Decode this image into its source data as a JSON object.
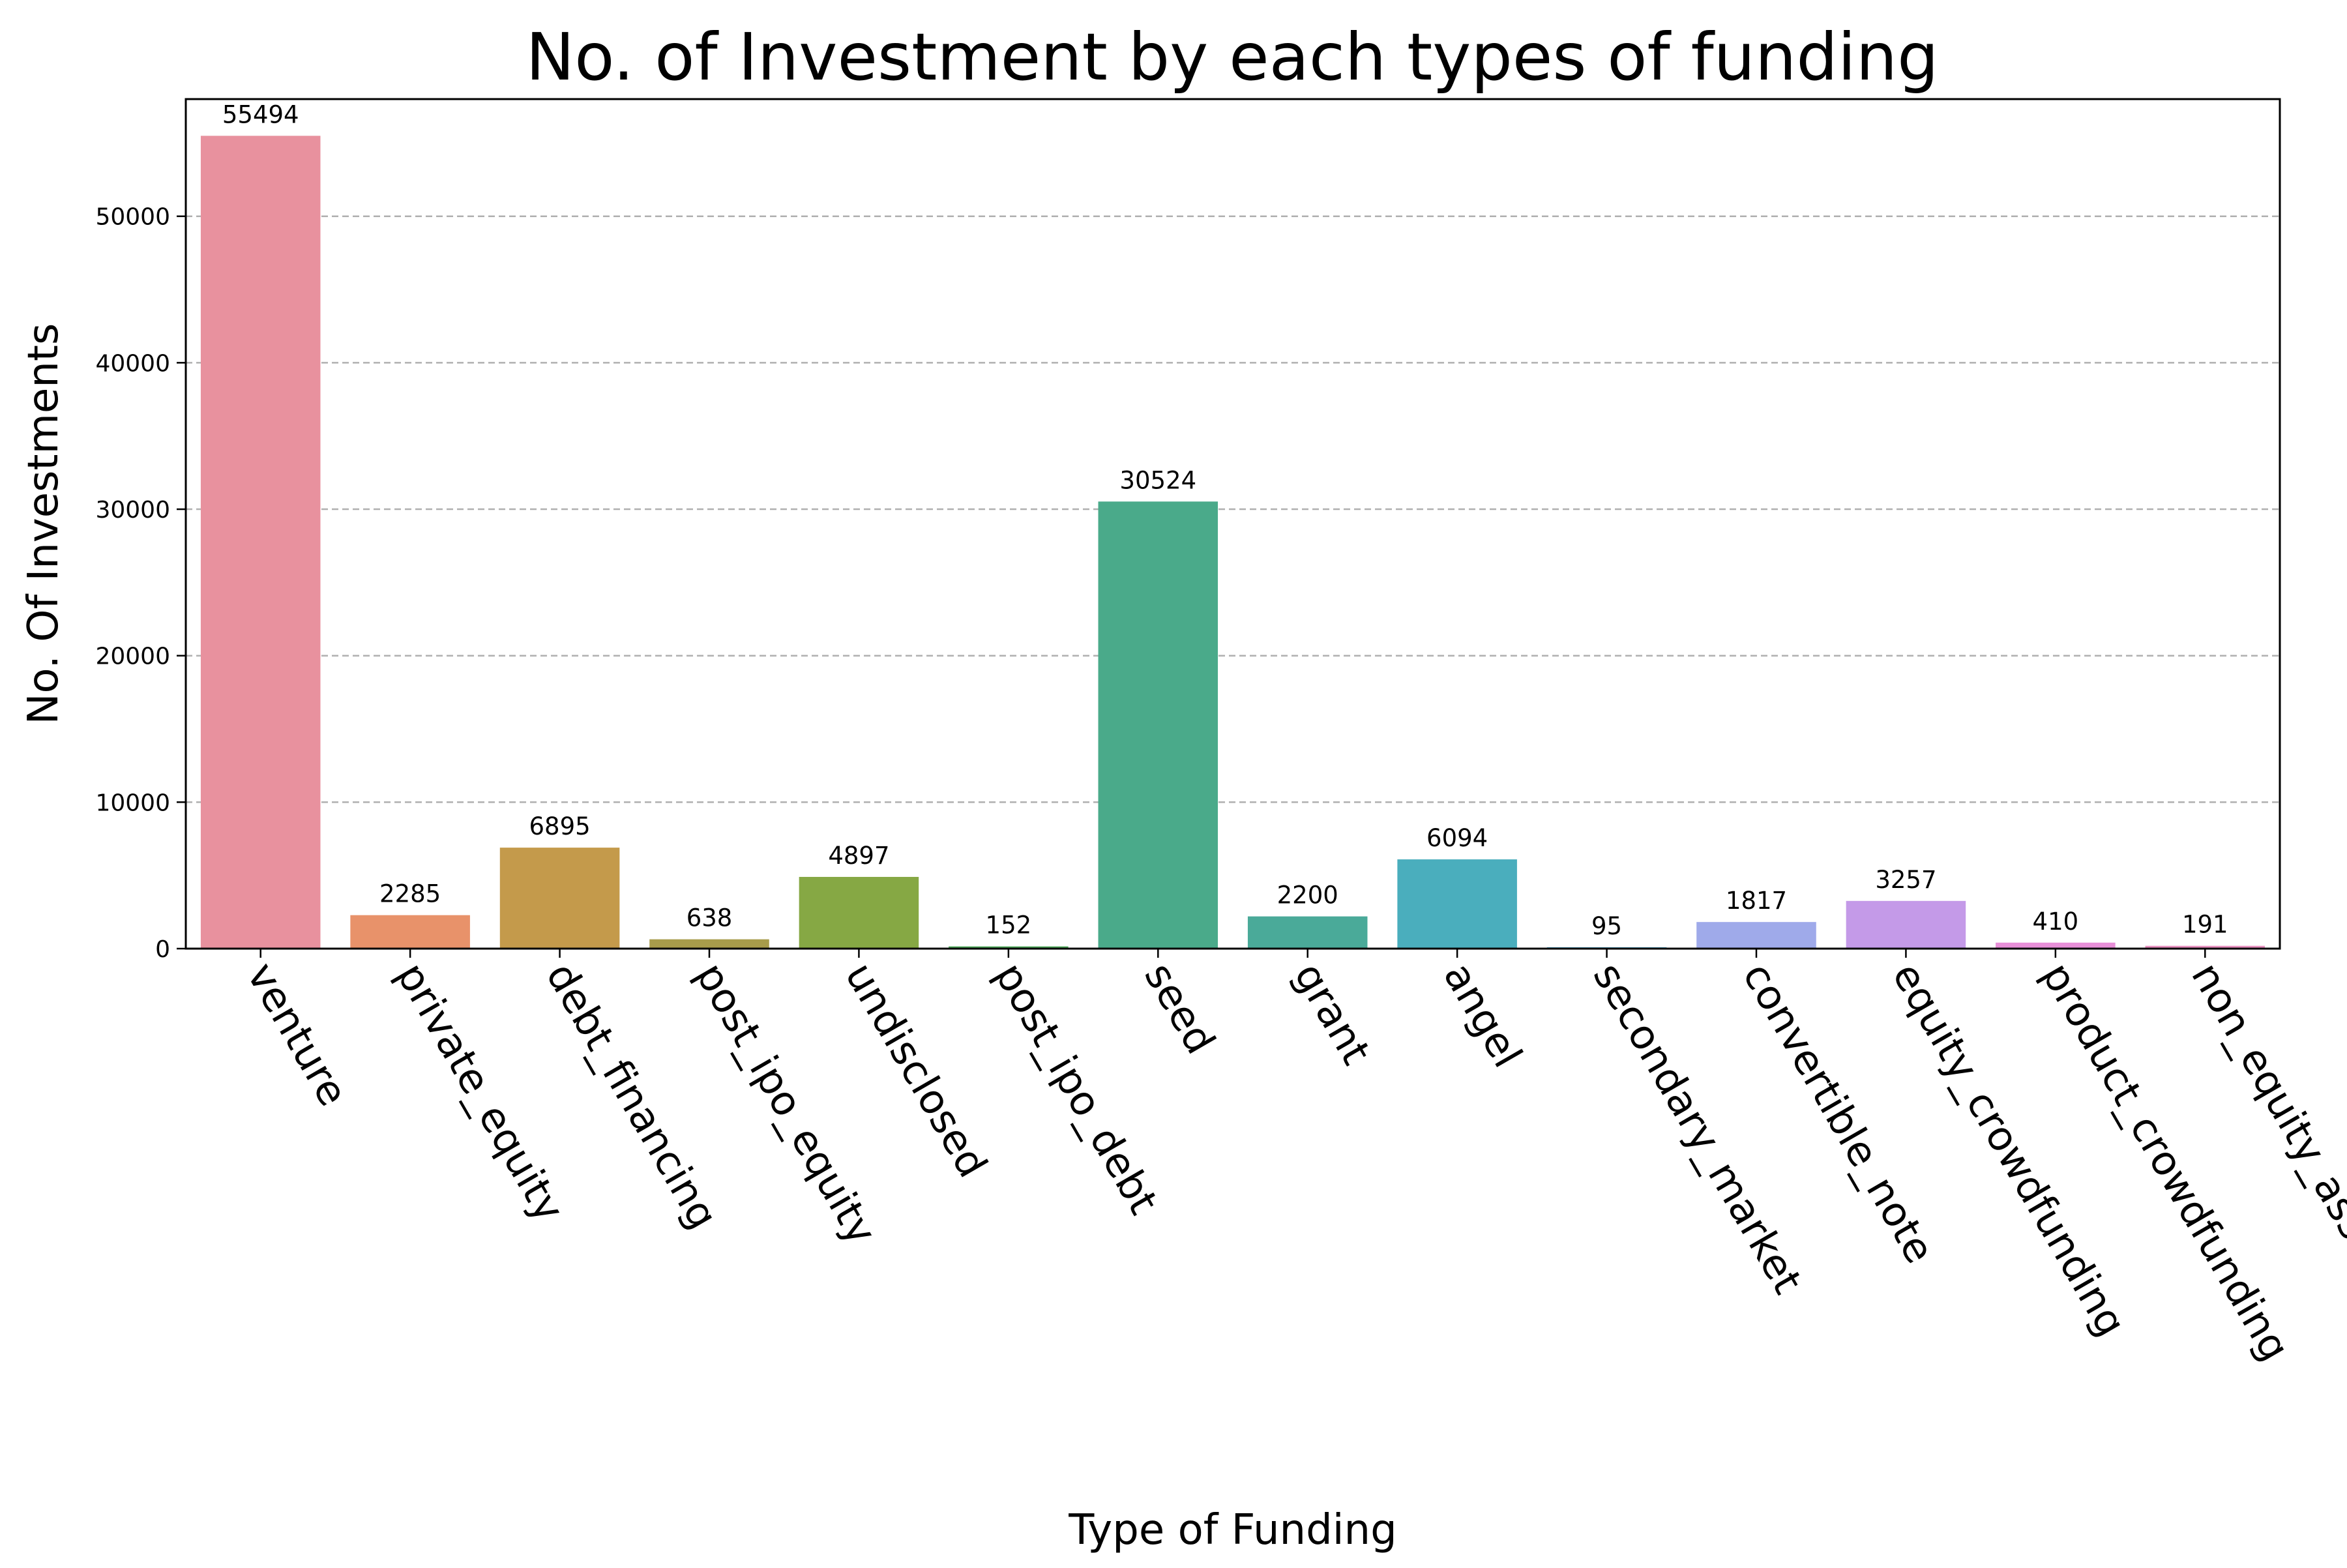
{
  "chart_data": {
    "type": "bar",
    "title": "No. of Investment by each types of funding",
    "xlabel": "Type of Funding",
    "ylabel": "No. Of Investments",
    "categories": [
      "venture",
      "private_equity",
      "debt_financing",
      "post_ipo_equity",
      "undisclosed",
      "post_ipo_debt",
      "seed",
      "grant",
      "angel",
      "secondary_market",
      "convertible_note",
      "equity_crowdfunding",
      "product_crowdfunding",
      "non_equity_assistance"
    ],
    "values": [
      55494,
      2285,
      6895,
      638,
      4897,
      152,
      30524,
      2200,
      6094,
      95,
      1817,
      3257,
      410,
      191
    ],
    "data_labels": [
      "55494",
      "2285",
      "6895",
      "638",
      "4897",
      "152",
      "30524",
      "2200",
      "6094",
      "95",
      "1817",
      "3257",
      "410",
      "191"
    ],
    "colors": [
      "#e8919e",
      "#e8926a",
      "#c49a4b",
      "#a89c4b",
      "#86a844",
      "#4ea85a",
      "#4aaa8a",
      "#4aaa99",
      "#4aaebd",
      "#4aa8d0",
      "#9faaea",
      "#c49ae8",
      "#e88fd8",
      "#e890c0"
    ],
    "ylim": [
      0,
      58000
    ],
    "yticks": [
      0,
      10000,
      20000,
      30000,
      40000,
      50000
    ],
    "ytick_labels": [
      "0",
      "10000",
      "20000",
      "30000",
      "40000",
      "50000"
    ],
    "grid": "y-dashed",
    "x_tick_rotation": -60,
    "legend": "none"
  }
}
